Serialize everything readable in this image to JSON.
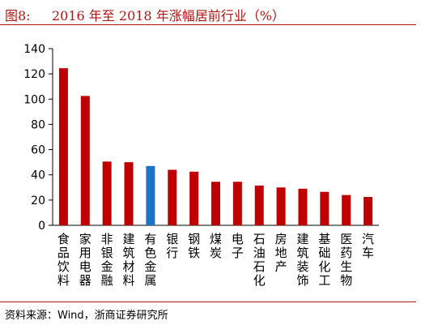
{
  "header": {
    "figure_label": "图8:",
    "title": "2016 年至 2018 年涨幅居前行业（%）"
  },
  "footer": {
    "source": "资料来源：Wind，浙商证券研究所"
  },
  "colors": {
    "bar": "#c00000",
    "highlight": "#1f72c4",
    "accent": "#b01513"
  },
  "chart_data": {
    "type": "bar",
    "title": "2016 年至 2018 年涨幅居前行业（%）",
    "categories": [
      "食品饮料",
      "家用电器",
      "非银金融",
      "建筑材料",
      "有色金属",
      "银行",
      "钢铁",
      "煤炭",
      "电子",
      "石油石化",
      "房地产",
      "建筑装饰",
      "基础化工",
      "医药生物",
      "汽车"
    ],
    "values": [
      124.5,
      102.5,
      50.5,
      50.0,
      47.0,
      44.0,
      42.5,
      34.5,
      34.5,
      31.5,
      30.0,
      29.0,
      26.5,
      24.0,
      22.5
    ],
    "highlight_category": "有色金属",
    "yticks": [
      0,
      20,
      40,
      60,
      80,
      100,
      120,
      140
    ],
    "ylim": [
      0,
      140
    ],
    "xlabel": "",
    "ylabel": "",
    "grid": false,
    "legend": "none"
  }
}
